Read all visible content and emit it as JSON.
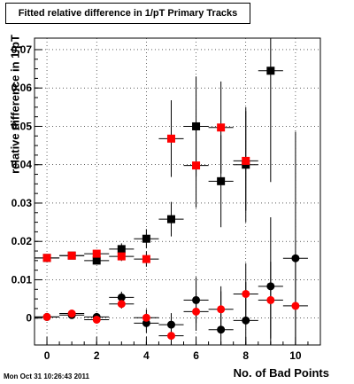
{
  "chart_data": {
    "type": "scatter",
    "title": "Fitted relative difference in 1/pT Primary Tracks",
    "xlabel": "No. of Bad Points",
    "ylabel": "relative difference in 1/pT",
    "xlim": [
      -0.5,
      11
    ],
    "ylim": [
      -0.007,
      0.073
    ],
    "xticks": [
      "0",
      "2",
      "4",
      "6",
      "8",
      "10"
    ],
    "yticks": [
      "0",
      "0.01",
      "0.02",
      "0.03",
      "0.04",
      "0.05",
      "0.06",
      "0.07"
    ],
    "grid": true,
    "series": [
      {
        "color": "#000000",
        "marker": "square",
        "points": [
          [
            0,
            0.0157,
            0.0005
          ],
          [
            1,
            0.0163,
            0.0005
          ],
          [
            2,
            0.015,
            0.0009
          ],
          [
            3,
            0.018,
            0.0015
          ],
          [
            4,
            0.0207,
            0.0025
          ],
          [
            5,
            0.0258,
            0.0045
          ],
          [
            6,
            0.05,
            0.013
          ],
          [
            7,
            0.0357,
            0.012
          ],
          [
            8,
            0.04,
            0.015
          ],
          [
            9,
            0.0645,
            0.029
          ]
        ]
      },
      {
        "color": "#ff0000",
        "marker": "square",
        "points": [
          [
            0,
            0.0157,
            0.0005
          ],
          [
            1,
            0.0163,
            0.0005
          ],
          [
            2,
            0.0168,
            0.0008
          ],
          [
            3,
            0.0161,
            0.0012
          ],
          [
            4,
            0.0154,
            0.002
          ],
          [
            5,
            0.0468,
            0.01
          ],
          [
            6,
            0.0398,
            0.011
          ],
          [
            7,
            0.0497,
            0.012
          ],
          [
            8,
            0.041,
            0.013
          ]
        ]
      },
      {
        "color": "#000000",
        "marker": "circle",
        "points": [
          [
            0,
            0.0003,
            0.0004
          ],
          [
            1,
            0.0008,
            0.0005
          ],
          [
            2,
            0.0003,
            0.0007
          ],
          [
            3,
            0.0054,
            0.0015
          ],
          [
            4,
            -0.0013,
            0.0025
          ],
          [
            5,
            -0.0017,
            0.003
          ],
          [
            6,
            0.0047,
            0.006
          ],
          [
            7,
            -0.003,
            0.01
          ],
          [
            8,
            -0.0006,
            0.01
          ],
          [
            9,
            0.0083,
            0.018
          ],
          [
            10,
            0.0156,
            0.033
          ]
        ]
      },
      {
        "color": "#ff0000",
        "marker": "circle",
        "points": [
          [
            0,
            0.0003,
            0.0004
          ],
          [
            1,
            0.0012,
            0.0005
          ],
          [
            2,
            -0.0004,
            0.0007
          ],
          [
            3,
            0.0037,
            0.0012
          ],
          [
            4,
            0.0001,
            0.0022
          ],
          [
            5,
            -0.0046,
            0.003
          ],
          [
            6,
            0.0017,
            0.005
          ],
          [
            7,
            0.0023,
            0.006
          ],
          [
            8,
            0.0063,
            0.008
          ],
          [
            9,
            0.0047,
            0.01
          ],
          [
            10,
            0.0032,
            0.012
          ]
        ]
      }
    ]
  },
  "footer": "Mon Oct 31 10:26:43 2011"
}
